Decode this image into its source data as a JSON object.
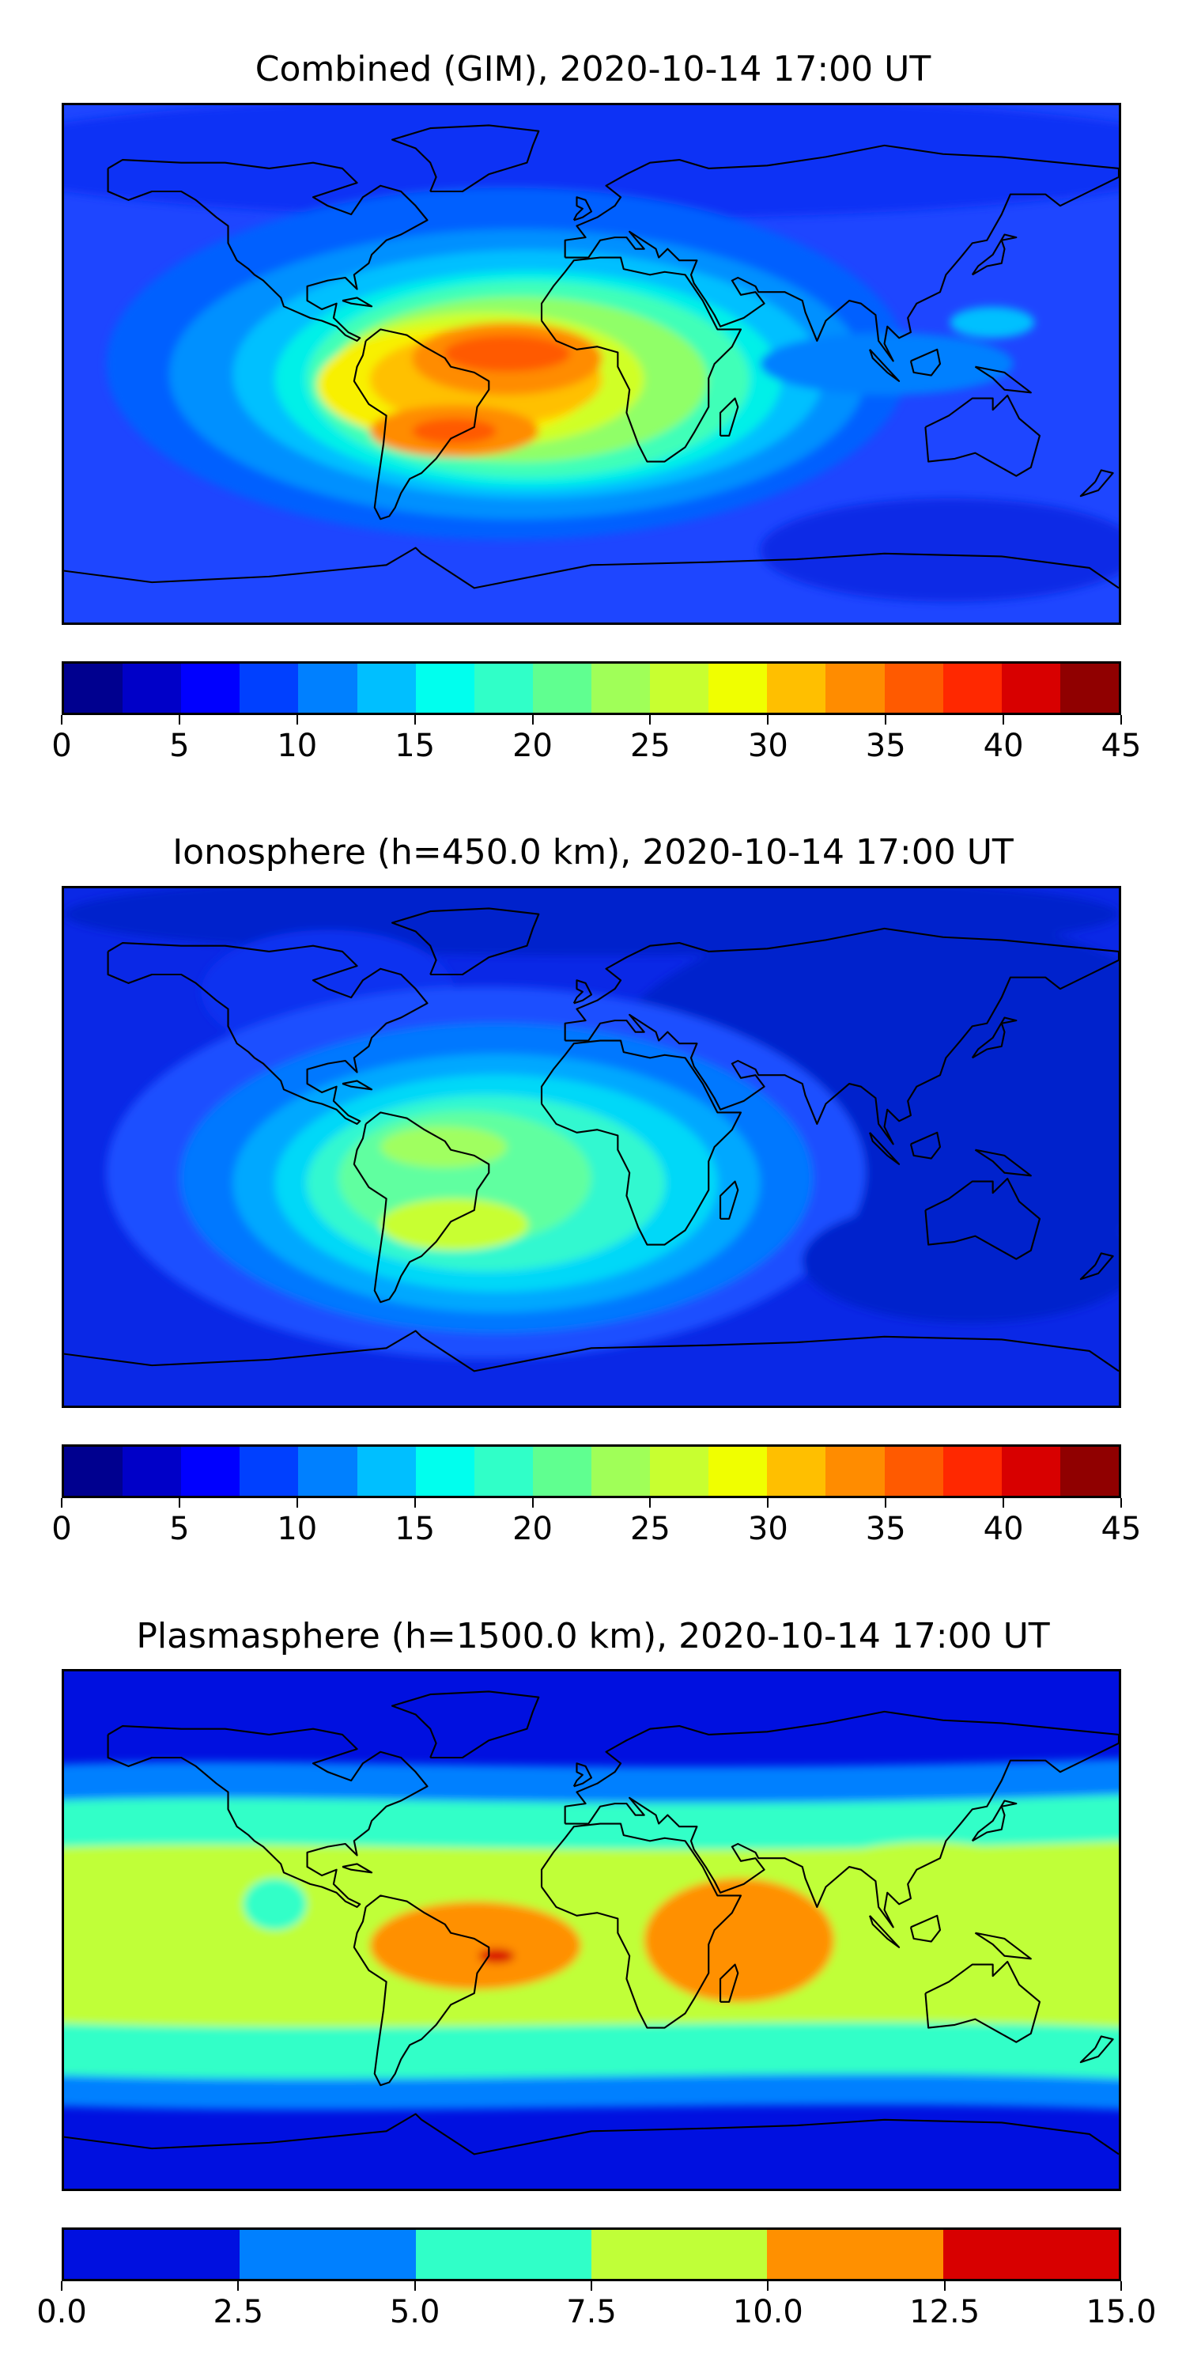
{
  "chart_data": [
    {
      "type": "heatmap",
      "title": "Combined (GIM), 2020-10-14 17:00 UT",
      "colorbar": {
        "min": 0,
        "max": 45,
        "tick_labels": [
          "0",
          "5",
          "10",
          "15",
          "20",
          "25",
          "30",
          "35",
          "40",
          "45"
        ],
        "colors": [
          "#00008f",
          "#0000c8",
          "#0000ff",
          "#0040ff",
          "#0080ff",
          "#00bfff",
          "#00ffee",
          "#30ffc8",
          "#60ff90",
          "#a0ff58",
          "#c8ff30",
          "#f0ff00",
          "#ffbf00",
          "#ff8c00",
          "#ff5a00",
          "#ff2800",
          "#d80000",
          "#900000"
        ]
      },
      "field": {
        "background": "#1e46ff",
        "blobs": [
          {
            "color": "#0a32f5",
            "cx": 0.5,
            "cy": 0.1,
            "rx": 0.6,
            "ry": 0.12
          },
          {
            "color": "#0a2ae6",
            "cx": 0.84,
            "cy": 0.86,
            "rx": 0.18,
            "ry": 0.1
          },
          {
            "color": "#0060ff",
            "cx": 0.42,
            "cy": 0.5,
            "rx": 0.38,
            "ry": 0.34
          },
          {
            "color": "#0090ff",
            "cx": 0.43,
            "cy": 0.52,
            "rx": 0.33,
            "ry": 0.28
          },
          {
            "color": "#00c0ff",
            "cx": 0.44,
            "cy": 0.52,
            "rx": 0.28,
            "ry": 0.24
          },
          {
            "color": "#00f0e8",
            "cx": 0.44,
            "cy": 0.53,
            "rx": 0.24,
            "ry": 0.21
          },
          {
            "color": "#40ffb8",
            "cx": 0.44,
            "cy": 0.53,
            "rx": 0.21,
            "ry": 0.19
          },
          {
            "color": "#90ff68",
            "cx": 0.43,
            "cy": 0.53,
            "rx": 0.18,
            "ry": 0.16
          },
          {
            "color": "#d0ff28",
            "cx": 0.4,
            "cy": 0.53,
            "rx": 0.15,
            "ry": 0.13
          },
          {
            "color": "#f8f000",
            "cx": 0.37,
            "cy": 0.54,
            "rx": 0.13,
            "ry": 0.11
          },
          {
            "color": "#ffc000",
            "cx": 0.4,
            "cy": 0.53,
            "rx": 0.11,
            "ry": 0.09
          },
          {
            "color": "#ff8c00",
            "cx": 0.42,
            "cy": 0.49,
            "rx": 0.09,
            "ry": 0.07
          },
          {
            "color": "#ff5a00",
            "cx": 0.42,
            "cy": 0.48,
            "rx": 0.06,
            "ry": 0.035
          },
          {
            "color": "#ff8c00",
            "cx": 0.37,
            "cy": 0.63,
            "rx": 0.08,
            "ry": 0.05
          },
          {
            "color": "#ff5a00",
            "cx": 0.37,
            "cy": 0.63,
            "rx": 0.04,
            "ry": 0.025
          },
          {
            "color": "#00c0ff",
            "cx": 0.88,
            "cy": 0.42,
            "rx": 0.04,
            "ry": 0.03
          },
          {
            "color": "#0080ff",
            "cx": 0.78,
            "cy": 0.5,
            "rx": 0.12,
            "ry": 0.06
          }
        ]
      }
    },
    {
      "type": "heatmap",
      "title": "Ionosphere  (h=450.0 km), 2020-10-14 17:00 UT",
      "colorbar": {
        "min": 0,
        "max": 45,
        "tick_labels": [
          "0",
          "5",
          "10",
          "15",
          "20",
          "25",
          "30",
          "35",
          "40",
          "45"
        ],
        "colors": [
          "#00008f",
          "#0000c8",
          "#0000ff",
          "#0040ff",
          "#0080ff",
          "#00bfff",
          "#00ffee",
          "#30ffc8",
          "#60ff90",
          "#a0ff58",
          "#c8ff30",
          "#f0ff00",
          "#ffbf00",
          "#ff8c00",
          "#ff5a00",
          "#ff2800",
          "#d80000",
          "#900000"
        ]
      },
      "field": {
        "background": "#0a28e6",
        "blobs": [
          {
            "color": "#0020cc",
            "cx": 0.8,
            "cy": 0.4,
            "rx": 0.3,
            "ry": 0.35
          },
          {
            "color": "#0020cc",
            "cx": 0.5,
            "cy": 0.05,
            "rx": 0.5,
            "ry": 0.08
          },
          {
            "color": "#0a30f0",
            "cx": 0.25,
            "cy": 0.2,
            "rx": 0.12,
            "ry": 0.12
          },
          {
            "color": "#1e50ff",
            "cx": 0.4,
            "cy": 0.55,
            "rx": 0.36,
            "ry": 0.36
          },
          {
            "color": "#0078ff",
            "cx": 0.41,
            "cy": 0.56,
            "rx": 0.3,
            "ry": 0.3
          },
          {
            "color": "#00a8ff",
            "cx": 0.41,
            "cy": 0.57,
            "rx": 0.25,
            "ry": 0.25
          },
          {
            "color": "#00d8f8",
            "cx": 0.41,
            "cy": 0.57,
            "rx": 0.21,
            "ry": 0.21
          },
          {
            "color": "#30f8d0",
            "cx": 0.4,
            "cy": 0.57,
            "rx": 0.17,
            "ry": 0.17
          },
          {
            "color": "#60ffa0",
            "cx": 0.38,
            "cy": 0.56,
            "rx": 0.12,
            "ry": 0.13
          },
          {
            "color": "#a0ff60",
            "cx": 0.36,
            "cy": 0.5,
            "rx": 0.06,
            "ry": 0.04
          },
          {
            "color": "#c8ff30",
            "cx": 0.37,
            "cy": 0.65,
            "rx": 0.07,
            "ry": 0.05
          },
          {
            "color": "#0020cc",
            "cx": 0.86,
            "cy": 0.72,
            "rx": 0.16,
            "ry": 0.12
          }
        ]
      }
    },
    {
      "type": "heatmap",
      "title": "Plasmasphere (h=1500.0 km), 2020-10-14 17:00 UT",
      "colorbar": {
        "min": 0.0,
        "max": 15.0,
        "tick_labels": [
          "0.0",
          "2.5",
          "5.0",
          "7.5",
          "10.0",
          "12.5",
          "15.0"
        ],
        "colors": [
          "#0010e0",
          "#0080ff",
          "#30ffc8",
          "#c0ff38",
          "#ff9000",
          "#d80000"
        ]
      },
      "field": {
        "background": "#0010e0",
        "bands": [
          {
            "color": "#0080ff",
            "top": 0.18,
            "bottom": 0.84
          },
          {
            "color": "#30ffc8",
            "top": 0.25,
            "bottom": 0.78
          },
          {
            "color": "#c0ff38",
            "top": 0.34,
            "bottom": 0.68
          }
        ],
        "blobs": [
          {
            "color": "#c0ff38",
            "cx": 0.14,
            "cy": 0.48,
            "rx": 0.1,
            "ry": 0.12
          },
          {
            "color": "#c0ff38",
            "cx": 0.82,
            "cy": 0.44,
            "rx": 0.14,
            "ry": 0.11
          },
          {
            "color": "#30ffc8",
            "cx": 0.2,
            "cy": 0.45,
            "rx": 0.03,
            "ry": 0.05
          },
          {
            "color": "#ff9000",
            "cx": 0.39,
            "cy": 0.53,
            "rx": 0.1,
            "ry": 0.085
          },
          {
            "color": "#ff9000",
            "cx": 0.64,
            "cy": 0.52,
            "rx": 0.09,
            "ry": 0.12
          },
          {
            "color": "#d80000",
            "cx": 0.41,
            "cy": 0.55,
            "rx": 0.017,
            "ry": 0.014
          }
        ]
      }
    }
  ]
}
